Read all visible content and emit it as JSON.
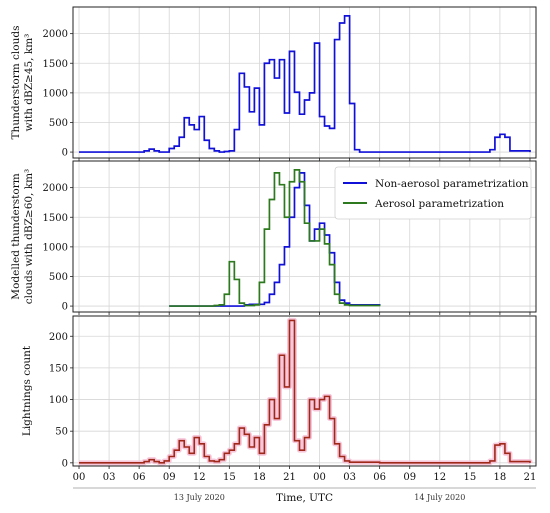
{
  "chart_data": [
    {
      "type": "line",
      "panel": "top",
      "ylabel_lines": [
        "Thunderstorm clouds",
        "with dBZ≥45, km³"
      ],
      "ylim": [
        -100,
        2450
      ],
      "yticks": [
        0,
        500,
        1000,
        1500,
        2000
      ],
      "xlim": [
        -0.6,
        45.6
      ],
      "grid": true,
      "series": [
        {
          "color": "#1010d8",
          "x": [
            0,
            6,
            6.5,
            7,
            7.5,
            8,
            8.5,
            9,
            9.5,
            10,
            10.5,
            11,
            11.5,
            12,
            12.5,
            13,
            13.5,
            14,
            14.5,
            15,
            15.5,
            16,
            16.5,
            17,
            17.5,
            18,
            18.5,
            19,
            19.5,
            20,
            20.5,
            21,
            21.5,
            22,
            22.5,
            23,
            23.5,
            24,
            24.5,
            25,
            25.5,
            26,
            26.5,
            27,
            27.5,
            28,
            30,
            35,
            40.5,
            41,
            41.5,
            42,
            42.5,
            43,
            45
          ],
          "y": [
            0,
            0,
            20,
            50,
            20,
            0,
            0,
            60,
            100,
            250,
            580,
            460,
            380,
            600,
            200,
            60,
            20,
            0,
            10,
            20,
            380,
            1330,
            1100,
            680,
            1080,
            460,
            1500,
            1560,
            1250,
            1560,
            660,
            1700,
            1010,
            640,
            880,
            1000,
            1840,
            600,
            440,
            400,
            1900,
            2180,
            2300,
            820,
            40,
            0,
            0,
            0,
            0,
            40,
            250,
            300,
            250,
            20,
            0
          ]
        }
      ]
    },
    {
      "type": "line",
      "panel": "middle",
      "ylabel_lines": [
        "Modelled thunderstorm",
        "clouds with dBZ≥60, km³"
      ],
      "ylim": [
        -100,
        2450
      ],
      "yticks": [
        0,
        500,
        1000,
        1500,
        2000
      ],
      "xlim": [
        -0.6,
        45.6
      ],
      "grid": true,
      "legend": "top-right",
      "series": [
        {
          "name": "Non-aerosol parametrization",
          "color": "#1010d8",
          "x": [
            9,
            13,
            15.5,
            16.5,
            17,
            17.5,
            18,
            18.5,
            19,
            19.5,
            20,
            20.5,
            21,
            21.5,
            22,
            22.5,
            23,
            23.5,
            24,
            24.5,
            25,
            25.5,
            26,
            26.5,
            27,
            30
          ],
          "y": [
            0,
            0,
            0,
            20,
            30,
            30,
            30,
            60,
            200,
            400,
            700,
            1000,
            1500,
            2000,
            2250,
            1700,
            1100,
            1300,
            1400,
            1200,
            900,
            400,
            100,
            50,
            20,
            0
          ]
        },
        {
          "name": "Aerosol parametrization",
          "color": "#2d7a1e",
          "x": [
            9,
            13,
            13.5,
            14,
            14.5,
            15,
            15.5,
            16,
            16.5,
            17,
            17.5,
            18,
            18.5,
            19,
            19.5,
            20,
            20.5,
            21,
            21.5,
            22,
            22.5,
            23,
            23.5,
            24,
            24.5,
            25,
            25.5,
            26,
            26.5,
            27,
            30
          ],
          "y": [
            0,
            0,
            10,
            20,
            200,
            750,
            450,
            50,
            10,
            10,
            20,
            400,
            1300,
            1800,
            2250,
            2050,
            1500,
            2100,
            2300,
            2100,
            1400,
            1100,
            1100,
            1300,
            1050,
            700,
            200,
            50,
            20,
            10,
            0
          ]
        }
      ]
    },
    {
      "type": "line",
      "panel": "bottom",
      "ylabel_lines": [
        "Lightnings count"
      ],
      "xlabel": "Time, UTC",
      "ylim": [
        -5,
        232
      ],
      "yticks": [
        0,
        50,
        100,
        150,
        200
      ],
      "xlim": [
        -0.6,
        45.6
      ],
      "xticks": [
        "00",
        "03",
        "06",
        "09",
        "12",
        "15",
        "18",
        "21",
        "00",
        "03",
        "06",
        "09",
        "12",
        "15",
        "18",
        "21"
      ],
      "date_labels": [
        "13 July 2020",
        "14 July 2020"
      ],
      "grid": true,
      "series": [
        {
          "color": "#a0281a",
          "x": [
            0,
            6,
            6.5,
            7,
            7.5,
            8,
            8.5,
            9,
            9.5,
            10,
            10.5,
            11,
            11.5,
            12,
            12.5,
            13,
            13.5,
            14,
            14.5,
            15,
            15.5,
            16,
            16.5,
            17,
            17.5,
            18,
            18.5,
            19,
            19.5,
            20,
            20.5,
            21,
            21.5,
            22,
            22.5,
            23,
            23.5,
            24,
            24.5,
            25,
            25.5,
            26,
            26.5,
            27,
            30,
            40.5,
            41,
            41.5,
            42,
            42.5,
            43,
            45
          ],
          "y": [
            0,
            0,
            2,
            5,
            2,
            0,
            3,
            10,
            20,
            35,
            25,
            15,
            40,
            30,
            10,
            3,
            2,
            5,
            15,
            20,
            30,
            55,
            45,
            25,
            40,
            15,
            60,
            100,
            70,
            170,
            120,
            225,
            35,
            20,
            40,
            100,
            85,
            100,
            105,
            70,
            30,
            10,
            3,
            1,
            0,
            0,
            3,
            28,
            30,
            15,
            2,
            0
          ]
        }
      ]
    }
  ]
}
